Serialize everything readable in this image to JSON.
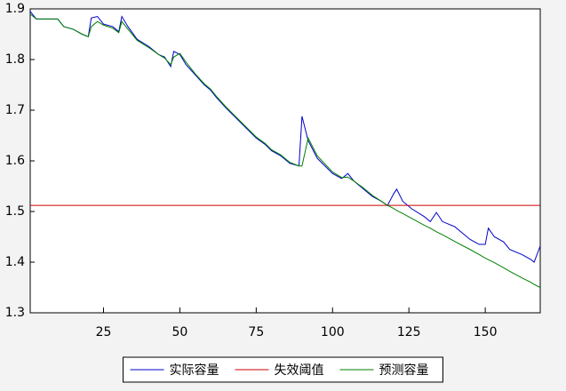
{
  "chart_data": {
    "type": "line",
    "x": [
      1,
      3,
      10,
      12,
      15,
      18,
      20,
      21,
      23,
      25,
      28,
      30,
      31,
      33,
      36,
      40,
      43,
      45,
      47,
      48,
      50,
      52,
      55,
      58,
      60,
      62,
      65,
      70,
      75,
      78,
      80,
      83,
      86,
      89,
      90,
      92,
      95,
      100,
      103,
      105,
      107,
      110,
      113,
      116,
      118,
      120,
      121,
      123,
      126,
      130,
      132,
      134,
      136,
      140,
      145,
      148,
      150,
      151,
      153,
      156,
      158,
      162,
      165,
      166,
      168
    ],
    "series": [
      {
        "name": "实际容量",
        "color": "#0000cc",
        "values": [
          1.895,
          1.88,
          1.88,
          1.865,
          1.86,
          1.85,
          1.845,
          1.882,
          1.885,
          1.87,
          1.865,
          1.855,
          1.885,
          1.865,
          1.84,
          1.825,
          1.81,
          1.805,
          1.786,
          1.816,
          1.81,
          1.79,
          1.77,
          1.75,
          1.74,
          1.725,
          1.705,
          1.675,
          1.645,
          1.632,
          1.62,
          1.61,
          1.595,
          1.59,
          1.688,
          1.64,
          1.605,
          1.575,
          1.565,
          1.575,
          1.56,
          1.545,
          1.53,
          1.52,
          1.512,
          1.535,
          1.544,
          1.52,
          1.505,
          1.49,
          1.48,
          1.498,
          1.48,
          1.47,
          1.445,
          1.435,
          1.435,
          1.467,
          1.45,
          1.44,
          1.425,
          1.415,
          1.405,
          1.4,
          1.432
        ]
      },
      {
        "name": "失效阈值",
        "color": "#cc0000",
        "values": [
          1.512,
          1.512,
          1.512,
          1.512,
          1.512,
          1.512,
          1.512,
          1.512,
          1.512,
          1.512,
          1.512,
          1.512,
          1.512,
          1.512,
          1.512,
          1.512,
          1.512,
          1.512,
          1.512,
          1.512,
          1.512,
          1.512,
          1.512,
          1.512,
          1.512,
          1.512,
          1.512,
          1.512,
          1.512,
          1.512,
          1.512,
          1.512,
          1.512,
          1.512,
          1.512,
          1.512,
          1.512,
          1.512,
          1.512,
          1.512,
          1.512,
          1.512,
          1.512,
          1.512,
          1.512,
          1.512,
          1.512,
          1.512,
          1.512,
          1.512,
          1.512,
          1.512,
          1.512,
          1.512,
          1.512,
          1.512,
          1.512,
          1.512,
          1.512,
          1.512,
          1.512,
          1.512,
          1.512,
          1.512,
          1.512
        ]
      },
      {
        "name": "预测容量",
        "color": "#008000",
        "values": [
          1.89,
          1.88,
          1.88,
          1.865,
          1.86,
          1.85,
          1.845,
          1.865,
          1.875,
          1.868,
          1.862,
          1.853,
          1.875,
          1.86,
          1.838,
          1.823,
          1.81,
          1.803,
          1.79,
          1.805,
          1.812,
          1.795,
          1.772,
          1.752,
          1.742,
          1.727,
          1.707,
          1.677,
          1.647,
          1.634,
          1.622,
          1.612,
          1.597,
          1.59,
          1.59,
          1.645,
          1.61,
          1.578,
          1.567,
          1.568,
          1.56,
          1.547,
          1.532,
          1.52,
          1.512,
          1.506,
          1.502,
          1.496,
          1.486,
          1.473,
          1.467,
          1.46,
          1.454,
          1.441,
          1.425,
          1.415,
          1.408,
          1.405,
          1.399,
          1.389,
          1.382,
          1.369,
          1.36,
          1.356,
          1.35
        ]
      }
    ],
    "xlim": [
      1,
      168
    ],
    "xticks": [
      25,
      50,
      75,
      100,
      125,
      150
    ],
    "ylim": [
      1.3,
      1.9
    ],
    "yticks": [
      1.3,
      1.4,
      1.5,
      1.6,
      1.7,
      1.8,
      1.9
    ],
    "legend": "bottom"
  }
}
